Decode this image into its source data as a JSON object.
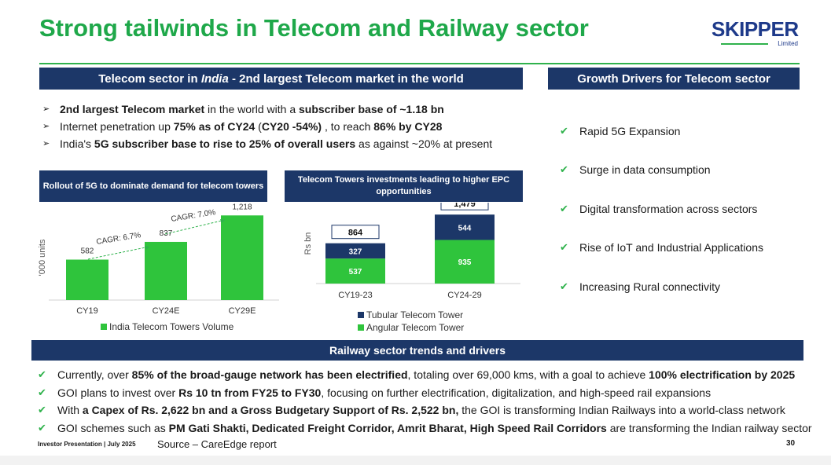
{
  "title": "Strong tailwinds in Telecom and Railway sector",
  "logo": {
    "word": "SKIPPER",
    "sub": "Limited"
  },
  "telecom_header": {
    "pre": "Telecom sector in ",
    "italic": "India",
    "post": " - 2nd largest Telecom market in the world"
  },
  "drivers_header": "Growth Drivers for Telecom sector",
  "telecom_bullets": [
    [
      {
        "t": "2nd largest Telecom market",
        "b": true
      },
      {
        "t": " in the world with a ",
        "b": false
      },
      {
        "t": "subscriber base of ~1.18 bn",
        "b": true
      }
    ],
    [
      {
        "t": "Internet penetration up ",
        "b": false
      },
      {
        "t": "75% as of CY24",
        "b": true
      },
      {
        "t": " (",
        "b": false
      },
      {
        "t": "CY20 -54%)",
        "b": true
      },
      {
        "t": " , to reach ",
        "b": false
      },
      {
        "t": "86% by CY28",
        "b": true
      }
    ],
    [
      {
        "t": "India's ",
        "b": false
      },
      {
        "t": "5G subscriber base to rise to 25% of overall users",
        "b": true
      },
      {
        "t": " as against ~20% at present",
        "b": false
      }
    ]
  ],
  "drivers": [
    "Rapid 5G Expansion",
    "Surge in data consumption",
    "Digital transformation across sectors",
    "Rise of IoT and Industrial Applications",
    "Increasing Rural connectivity"
  ],
  "chart1_header": "Rollout of 5G to dominate demand for telecom towers",
  "chart2_header": "Telecom Towers investments leading to higher EPC opportunities",
  "chart_data": [
    {
      "type": "bar",
      "title": "Rollout of 5G to dominate demand for telecom towers",
      "categories": [
        "CY19",
        "CY24E",
        "CY29E"
      ],
      "values": [
        582,
        837,
        1218
      ],
      "value_labels": [
        "582",
        "837",
        "1,218"
      ],
      "ylabel": "'000 units",
      "ylim": [
        0,
        1300
      ],
      "legend": "India Telecom Towers Volume",
      "annotations": [
        "CAGR: 6.7%",
        "CAGR: 7.0%"
      ],
      "color": "#2fc43c"
    },
    {
      "type": "bar",
      "stacked": true,
      "title": "Telecom Towers investments leading to higher EPC opportunities",
      "categories": [
        "CY19-23",
        "CY24-29"
      ],
      "ylabel": "Rs bn",
      "ylim": [
        0,
        1600
      ],
      "series": [
        {
          "name": "Angular Telecom Tower",
          "values": [
            537,
            935
          ],
          "color": "#2fc43c"
        },
        {
          "name": "Tubular Telecom Tower",
          "values": [
            327,
            544
          ],
          "color": "#1c3768"
        }
      ],
      "totals": [
        864,
        1479
      ],
      "total_labels": [
        "864",
        "1,479"
      ]
    }
  ],
  "railway_header": "Railway sector trends and drivers",
  "railway_bullets": [
    [
      {
        "t": "Currently, over ",
        "b": false
      },
      {
        "t": "85% of the broad-gauge network has been electrified",
        "b": true
      },
      {
        "t": ", totaling over 69,000 kms, with a goal to achieve ",
        "b": false
      },
      {
        "t": "100% electrification by 2025",
        "b": true
      }
    ],
    [
      {
        "t": "GOI plans to invest over ",
        "b": false
      },
      {
        "t": "Rs 10 tn from FY25 to FY30",
        "b": true
      },
      {
        "t": ", focusing on further electrification, digitalization, and high-speed rail expansions",
        "b": false
      }
    ],
    [
      {
        "t": "With ",
        "b": false
      },
      {
        "t": "a Capex of Rs. 2,622 bn and a Gross Budgetary Support of Rs. 2,522 bn,",
        "b": true
      },
      {
        "t": " the GOI is transforming Indian Railways into a world-class network",
        "b": false
      }
    ],
    [
      {
        "t": "GOI schemes such as ",
        "b": false
      },
      {
        "t": "PM Gati Shakti, Dedicated Freight Corridor, Amrit Bharat, High Speed Rail Corridors",
        "b": true
      },
      {
        "t": " are transforming the Indian railway sector",
        "b": false
      }
    ]
  ],
  "footer": {
    "left": "Investor Presentation | July 2025",
    "source": "Source – CareEdge report",
    "page": "30"
  },
  "colors": {
    "green": "#1fa84a",
    "navy": "#1c3768",
    "bar_green": "#2fc43c"
  }
}
